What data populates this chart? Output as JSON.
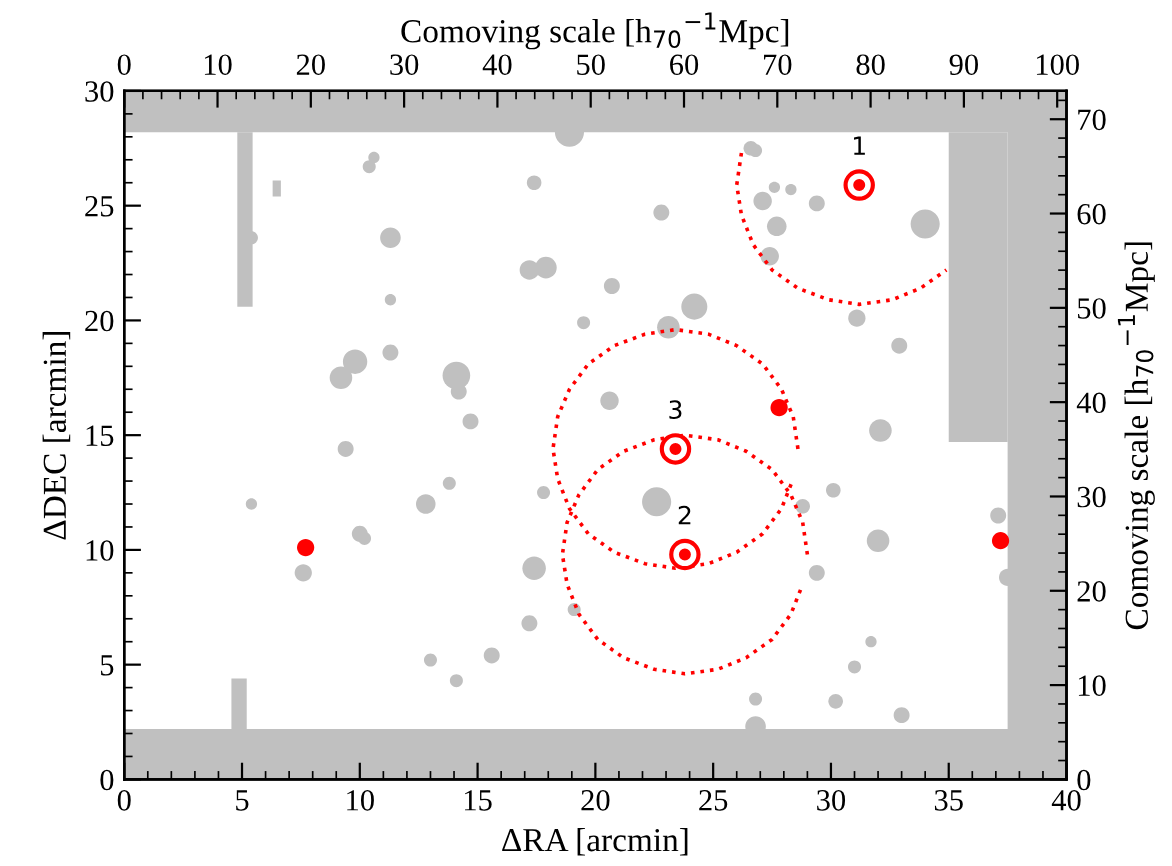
{
  "chart_data": {
    "type": "scatter",
    "xlabel": "ΔRA [arcmin]",
    "ylabel": "ΔDEC [arcmin]",
    "x2label": "Comoving scale [h$_{70}$$^{−1}$Mpc]",
    "y2label": "Comoving scale [h$_{70}$$^{−1}$Mpc]",
    "xlim": [
      0,
      40
    ],
    "ylim": [
      0,
      30
    ],
    "xticks": [
      0,
      5,
      10,
      15,
      20,
      25,
      30,
      35,
      40
    ],
    "yticks": [
      0,
      5,
      10,
      15,
      20,
      25,
      30
    ],
    "x2lim": [
      0,
      101
    ],
    "x2ticks": [
      0,
      10,
      20,
      30,
      40,
      50,
      60,
      70,
      80,
      90,
      100
    ],
    "y2lim": [
      0,
      73
    ],
    "y2ticks": [
      0,
      10,
      20,
      30,
      40,
      50,
      60,
      70
    ],
    "grid": false,
    "legend": false,
    "marker": "circle",
    "bands": [
      {
        "axis": "y",
        "from": 0,
        "to": 2.2,
        "color": "#c0c0c0"
      },
      {
        "axis": "y",
        "from": 28.2,
        "to": 30,
        "color": "#c0c0c0"
      },
      {
        "axis": "x",
        "from": 37.5,
        "to": 40,
        "color": "#c0c0c0"
      }
    ],
    "series": [
      {
        "type": "bubble",
        "color": "#c0c0c0",
        "x": [
          10.6,
          10.4,
          17.4,
          5.4,
          11.3,
          17.2,
          17.9,
          11.3,
          19.5,
          11.3,
          9.2,
          9.8,
          14.1,
          14.2,
          18.9,
          20.7,
          20.6,
          26.6,
          26.8,
          27.6,
          28.3,
          27.1,
          29.4,
          27.7,
          27.4,
          22.8,
          34.0,
          24.2,
          23.1,
          31.1,
          32.9,
          9.4,
          14.7,
          13.8,
          12.8,
          17.8,
          5.4,
          10.0,
          10.2,
          7.6,
          17.4,
          19.1,
          17.2,
          15.6,
          13.0,
          14.1,
          22.6,
          32.1,
          30.1,
          28.8,
          32.0,
          29.4,
          37.1,
          37.5,
          31.7,
          31.0,
          26.8,
          30.2,
          33.0,
          26.8
        ],
        "values": [
          27.1,
          26.7,
          26.0,
          23.6,
          23.6,
          22.2,
          22.3,
          20.9,
          19.9,
          18.6,
          17.5,
          18.2,
          17.6,
          16.9,
          28.2,
          21.5,
          16.5,
          27.5,
          27.4,
          25.8,
          25.7,
          25.2,
          25.1,
          24.1,
          22.8,
          24.7,
          24.2,
          20.6,
          19.7,
          20.1,
          18.9,
          14.4,
          15.6,
          12.9,
          12.0,
          12.5,
          12.0,
          10.7,
          10.5,
          9.0,
          9.2,
          7.4,
          6.8,
          5.4,
          5.2,
          4.3,
          12.1,
          15.2,
          12.6,
          11.9,
          10.4,
          9.0,
          11.5,
          8.8,
          6.0,
          4.9,
          3.5,
          3.4,
          2.8,
          2.3
        ],
        "sizes": [
          0.15,
          0.2,
          0.25,
          0.2,
          0.5,
          0.45,
          0.55,
          0.15,
          0.2,
          0.3,
          0.6,
          0.7,
          0.9,
          0.3,
          1.0,
          0.3,
          0.4,
          0.25,
          0.2,
          0.15,
          0.15,
          0.4,
          0.3,
          0.45,
          0.4,
          0.3,
          1.0,
          0.8,
          0.6,
          0.35,
          0.3,
          0.3,
          0.3,
          0.2,
          0.45,
          0.2,
          0.15,
          0.3,
          0.2,
          0.35,
          0.65,
          0.2,
          0.3,
          0.3,
          0.2,
          0.2,
          1.0,
          0.6,
          0.25,
          0.25,
          0.6,
          0.3,
          0.3,
          0.35,
          0.15,
          0.2,
          0.2,
          0.25,
          0.3,
          0.5
        ]
      },
      {
        "type": "line",
        "color": "#ff0000",
        "line_style": "dotted",
        "marker": "none",
        "x": [
          26.2,
          26.0,
          26.2,
          26.7,
          27.5,
          28.6,
          29.9,
          31.2,
          32.6,
          33.8,
          34.9
        ],
        "values": [
          27.3,
          25.9,
          24.6,
          23.3,
          22.2,
          21.4,
          20.9,
          20.7,
          20.9,
          21.4,
          22.2
        ]
      },
      {
        "type": "line",
        "color": "#ff0000",
        "line_style": "dotted",
        "marker": "none",
        "x": [
          28.6,
          28.4,
          27.9,
          27.1,
          26.0,
          24.8,
          23.4,
          22.1,
          20.8,
          19.7,
          18.9,
          18.4,
          18.2,
          18.4,
          18.9,
          19.7,
          20.8,
          22.1,
          23.4,
          24.8,
          26.0,
          27.1,
          27.9,
          28.4
        ],
        "values": [
          14.4,
          15.8,
          17.0,
          18.1,
          18.9,
          19.4,
          19.6,
          19.4,
          18.9,
          18.1,
          17.0,
          15.8,
          14.4,
          13.1,
          11.8,
          10.7,
          9.9,
          9.4,
          9.2,
          9.4,
          9.9,
          10.7,
          11.8,
          13.1
        ]
      },
      {
        "type": "line",
        "color": "#ff0000",
        "line_style": "dotted",
        "marker": "none",
        "x": [
          29.0,
          28.8,
          28.3,
          27.5,
          26.4,
          25.2,
          23.8,
          22.5,
          21.2,
          20.1,
          19.3,
          18.8,
          18.6,
          18.8,
          19.3,
          20.1,
          21.2,
          22.5,
          23.8,
          25.2,
          26.4,
          27.5,
          28.3,
          28.8
        ],
        "values": [
          9.8,
          11.2,
          12.4,
          13.5,
          14.3,
          14.8,
          15.0,
          14.8,
          14.3,
          13.5,
          12.4,
          11.2,
          9.8,
          8.5,
          7.2,
          6.1,
          5.3,
          4.8,
          4.6,
          4.8,
          5.3,
          6.1,
          7.2,
          8.5
        ]
      },
      {
        "color": "#ff0000",
        "x": [
          31.2,
          23.8,
          23.4
        ],
        "values": [
          25.9,
          9.8,
          14.4
        ]
      },
      {
        "type": "bubble",
        "color": "#ff0000",
        "x": [
          27.8,
          7.7,
          37.2
        ],
        "values": [
          16.2,
          10.1,
          10.4
        ],
        "sizes": [
          0.35,
          0.35,
          0.35
        ]
      }
    ],
    "annotations": [
      {
        "text": "1",
        "x": 31.2,
        "y": 25.9
      },
      {
        "text": "2",
        "x": 23.8,
        "y": 9.8
      },
      {
        "text": "3",
        "x": 23.4,
        "y": 14.4
      }
    ]
  }
}
